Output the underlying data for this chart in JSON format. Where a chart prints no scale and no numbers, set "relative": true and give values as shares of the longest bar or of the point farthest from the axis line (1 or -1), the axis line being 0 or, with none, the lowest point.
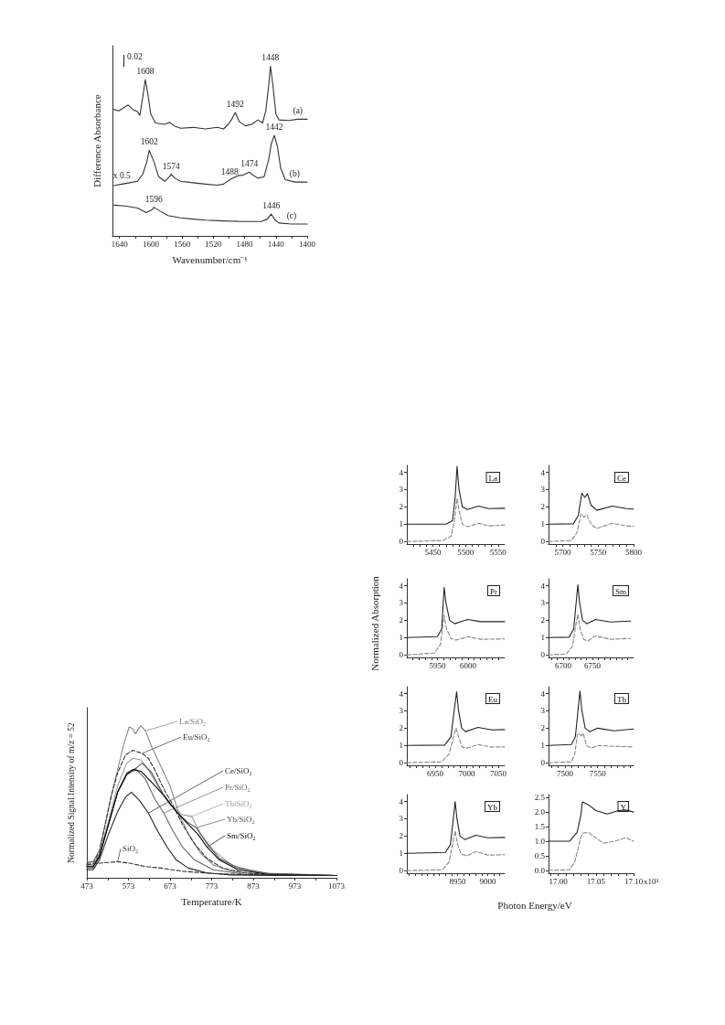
{
  "chart_data": [
    {
      "type": "line",
      "relative": true,
      "xlabel": "Wavenumber/cm⁻¹",
      "ylabel": "Difference Absorbance",
      "xlim": [
        1649,
        1400
      ],
      "xticks": [
        1640,
        {
          "value": 1620,
          "label": null
        },
        1600,
        {
          "value": 1580,
          "label": null
        },
        1560,
        {
          "value": 1540,
          "label": null
        },
        1520,
        {
          "value": 1500,
          "label": null
        },
        1480,
        {
          "value": 1460,
          "label": null
        },
        1440,
        {
          "value": 1420,
          "label": null
        },
        1400
      ],
      "series": [
        {
          "color": "#333333",
          "x": [
            1647,
            1641,
            1635,
            1629,
            1623,
            1617,
            1614,
            1610,
            1607,
            1604,
            1600,
            1594,
            1582,
            1576,
            1570,
            1562,
            1546,
            1530,
            1515,
            1507,
            1501,
            1497,
            1492,
            1487,
            1479,
            1471,
            1463,
            1457,
            1453,
            1449,
            1447,
            1444,
            1440,
            1436,
            1424,
            1412,
            1400
          ],
          "values": [
            0.745,
            0.736,
            0.754,
            0.771,
            0.745,
            0.732,
            0.71,
            0.824,
            0.921,
            0.842,
            0.718,
            0.665,
            0.657,
            0.669,
            0.648,
            0.634,
            0.639,
            0.63,
            0.639,
            0.63,
            0.657,
            0.683,
            0.727,
            0.674,
            0.648,
            0.657,
            0.683,
            0.665,
            0.736,
            0.894,
            1,
            0.894,
            0.718,
            0.683,
            0.68,
            0.687,
            0.687
          ]
        },
        {
          "color": "#333333",
          "x": [
            1647,
            1637,
            1627,
            1617,
            1610,
            1605,
            1602,
            1596,
            1590,
            1582,
            1576,
            1574,
            1569,
            1562,
            1546,
            1530,
            1515,
            1507,
            1499,
            1488,
            1483,
            1474,
            1469,
            1463,
            1455,
            1449,
            1446,
            1442,
            1438,
            1434,
            1428,
            1416,
            1400
          ],
          "values": [
            0.296,
            0.305,
            0.313,
            0.322,
            0.366,
            0.437,
            0.504,
            0.437,
            0.349,
            0.322,
            0.349,
            0.363,
            0.34,
            0.322,
            0.313,
            0.305,
            0.299,
            0.305,
            0.331,
            0.356,
            0.357,
            0.375,
            0.357,
            0.34,
            0.349,
            0.454,
            0.542,
            0.592,
            0.525,
            0.401,
            0.331,
            0.317,
            0.317
          ]
        },
        {
          "color": "#333333",
          "x": [
            1647,
            1633,
            1617,
            1606,
            1598,
            1596,
            1588,
            1578,
            1562,
            1546,
            1530,
            1507,
            1483,
            1459,
            1451,
            1446,
            1441,
            1436,
            1420,
            1400
          ],
          "values": [
            0.181,
            0.176,
            0.164,
            0.137,
            0.155,
            0.169,
            0.146,
            0.12,
            0.106,
            0.099,
            0.093,
            0.088,
            0.085,
            0.085,
            0.099,
            0.129,
            0.093,
            0.076,
            0.07,
            0.07
          ]
        }
      ],
      "annotations": [
        "0.02",
        {
          "text": "1608",
          "x": 1607,
          "y": 0.921
        },
        {
          "text": "1448",
          "x": 1447,
          "y": 1
        },
        {
          "text": "1492",
          "x": 1492,
          "y": 0.727
        },
        {
          "text": "(a)",
          "x": 1412,
          "y": 0.687
        },
        {
          "text": "x 0.5",
          "x": 1637,
          "y": 0.305
        },
        {
          "text": "1602",
          "x": 1602,
          "y": 0.504
        },
        {
          "text": "1574",
          "x": 1574,
          "y": 0.363
        },
        {
          "text": "1488",
          "x": 1499,
          "y": 0.331
        },
        {
          "text": "1474",
          "x": 1474,
          "y": 0.375
        },
        {
          "text": "1442",
          "x": 1442,
          "y": 0.592
        },
        {
          "text": "(b)",
          "x": 1416,
          "y": 0.317
        },
        {
          "text": "1596",
          "x": 1596,
          "y": 0.169
        },
        {
          "text": "1446",
          "x": 1446,
          "y": 0.129
        },
        {
          "text": "(c)",
          "x": 1420,
          "y": 0.07
        }
      ]
    },
    {
      "type": "line",
      "relative": true,
      "legend": "top right",
      "xlabel": "Temperature/K",
      "ylabel": "Normalized Signal Intensity of m/z = 52",
      "xlim": [
        473,
        1073
      ],
      "xticks": [
        473,
        {
          "value": 523,
          "label": null
        },
        573,
        {
          "value": 623,
          "label": null
        },
        673,
        {
          "value": 723,
          "label": null
        },
        773,
        {
          "value": 823,
          "label": null
        },
        873,
        {
          "value": 923,
          "label": null
        },
        973,
        {
          "value": 1023,
          "label": null
        },
        1073
      ],
      "series": [
        {
          "name": "La/SiO₂",
          "color": "#777777",
          "line_style": "dotted",
          "x": [
            473,
            488,
            503,
            517,
            532,
            547,
            562,
            575,
            584,
            590,
            596,
            603,
            614,
            629,
            651,
            673,
            695,
            717,
            747,
            777,
            821,
            888,
            999,
            1073
          ],
          "values": [
            0.106,
            0.106,
            0.181,
            0.351,
            0.543,
            0.713,
            0.883,
            0.994,
            0.979,
            0.947,
            0.979,
            1,
            0.968,
            0.862,
            0.734,
            0.606,
            0.415,
            0.287,
            0.16,
            0.085,
            0.043,
            0.021,
            0.015,
            0.015
          ]
        },
        {
          "name": "Eu/SiO₂",
          "color": "#333333",
          "line_style": "dashed",
          "x": [
            473,
            488,
            503,
            517,
            532,
            547,
            566,
            584,
            606,
            621,
            636,
            658,
            680,
            703,
            732,
            762,
            799,
            851,
            925,
            1073
          ],
          "values": [
            0.096,
            0.096,
            0.17,
            0.351,
            0.543,
            0.691,
            0.809,
            0.84,
            0.819,
            0.787,
            0.713,
            0.585,
            0.479,
            0.351,
            0.223,
            0.128,
            0.064,
            0.032,
            0.017,
            0.015
          ]
        },
        {
          "name": "Ce/SiO₂",
          "color": "#222222",
          "x": [
            473,
            488,
            503,
            525,
            547,
            566,
            580,
            599,
            621,
            643,
            666,
            688,
            717,
            762,
            821,
            925,
            1073
          ],
          "values": [
            0.053,
            0.053,
            0.117,
            0.287,
            0.436,
            0.532,
            0.564,
            0.511,
            0.426,
            0.309,
            0.202,
            0.117,
            0.064,
            0.032,
            0.019,
            0.015,
            0.015
          ]
        },
        {
          "name": "Pr/SiO₂",
          "color": "#666666",
          "x": [
            473,
            488,
            503,
            525,
            547,
            569,
            592,
            614,
            636,
            658,
            680,
            703,
            732,
            777,
            851,
            1073
          ],
          "values": [
            0.064,
            0.064,
            0.138,
            0.351,
            0.564,
            0.681,
            0.713,
            0.649,
            0.521,
            0.426,
            0.309,
            0.202,
            0.117,
            0.053,
            0.023,
            0.015
          ]
        },
        {
          "name": "Tb/SiO₂",
          "color": "#999999",
          "x": [
            473,
            488,
            503,
            525,
            547,
            569,
            584,
            603,
            621,
            643,
            673,
            703,
            725,
            747,
            777,
            821,
            888,
            1073
          ],
          "values": [
            0.085,
            0.085,
            0.16,
            0.372,
            0.606,
            0.755,
            0.787,
            0.777,
            0.713,
            0.606,
            0.479,
            0.415,
            0.404,
            0.287,
            0.181,
            0.085,
            0.032,
            0.015
          ]
        },
        {
          "name": "Yb/SiO₂",
          "color": "#555555",
          "x": [
            473,
            488,
            503,
            525,
            547,
            569,
            592,
            606,
            629,
            658,
            688,
            717,
            736,
            762,
            792,
            836,
            910,
            1073
          ],
          "values": [
            0.074,
            0.074,
            0.149,
            0.351,
            0.564,
            0.691,
            0.723,
            0.755,
            0.691,
            0.543,
            0.436,
            0.362,
            0.33,
            0.223,
            0.128,
            0.064,
            0.028,
            0.015
          ]
        },
        {
          "name": "Sm/SiO₂",
          "color": "#000000",
          "x": [
            473,
            488,
            503,
            525,
            547,
            569,
            584,
            603,
            629,
            658,
            688,
            717,
            740,
            762,
            792,
            836,
            910,
            1073
          ],
          "values": [
            0.074,
            0.074,
            0.138,
            0.351,
            0.564,
            0.681,
            0.713,
            0.702,
            0.628,
            0.543,
            0.436,
            0.351,
            0.287,
            0.202,
            0.117,
            0.053,
            0.021,
            0.015
          ]
        },
        {
          "name": "SiO₂",
          "color": "#333333",
          "line_style": "dashed",
          "x": [
            473,
            503,
            547,
            576,
            614,
            651,
            703,
            777,
            851,
            1073
          ],
          "values": [
            0.085,
            0.096,
            0.106,
            0.096,
            0.074,
            0.064,
            0.043,
            0.028,
            0.021,
            0.015
          ]
        }
      ]
    },
    {
      "type": "line",
      "xlim": [
        5410,
        5560
      ],
      "ylim": [
        -0.15,
        4.4
      ],
      "yticks": [
        0,
        1,
        2,
        3,
        4
      ],
      "xticks": [
        {
          "value": 5420,
          "label": null
        },
        {
          "value": 5430,
          "label": null
        },
        {
          "value": 5440,
          "label": null
        },
        5450,
        {
          "value": 5460,
          "label": null
        },
        {
          "value": 5470,
          "label": null
        },
        {
          "value": 5480,
          "label": null
        },
        {
          "value": 5490,
          "label": null
        },
        5500,
        {
          "value": 5510,
          "label": null
        },
        {
          "value": 5520,
          "label": null
        },
        {
          "value": 5530,
          "label": null
        },
        {
          "value": 5540,
          "label": null
        },
        5550
      ],
      "series": [
        {
          "color": "#222222",
          "x": [
            5410,
            5470,
            5480,
            5484,
            5487,
            5490,
            5495,
            5503,
            5520,
            5535,
            5560
          ],
          "values": [
            1,
            1,
            1.2,
            2.5,
            4.35,
            3,
            2,
            1.85,
            2.05,
            1.9,
            1.92
          ]
        },
        {
          "color": "#888888",
          "line_style": "dashed",
          "x": [
            5410,
            5465,
            5478,
            5483,
            5487,
            5490,
            5495,
            5503,
            5520,
            5535,
            5560
          ],
          "values": [
            0,
            0.05,
            0.3,
            1.2,
            2.5,
            1.8,
            1,
            0.85,
            1.05,
            0.9,
            0.95
          ]
        }
      ],
      "annotations": [
        "La"
      ]
    },
    {
      "type": "line",
      "xlim": [
        5680,
        5800
      ],
      "ylim": [
        -0.15,
        4.4
      ],
      "yticks": [
        0,
        1,
        2,
        3,
        4
      ],
      "xticks": [
        {
          "value": 5690,
          "label": null
        },
        5700,
        {
          "value": 5710,
          "label": null
        },
        {
          "value": 5720,
          "label": null
        },
        {
          "value": 5730,
          "label": null
        },
        {
          "value": 5740,
          "label": null
        },
        5750,
        {
          "value": 5760,
          "label": null
        },
        {
          "value": 5770,
          "label": null
        },
        {
          "value": 5780,
          "label": null
        },
        {
          "value": 5790,
          "label": null
        },
        5800
      ],
      "series": [
        {
          "color": "#222222",
          "x": [
            5680,
            5715,
            5722,
            5727,
            5731,
            5735,
            5740,
            5748,
            5770,
            5790,
            5800
          ],
          "values": [
            1,
            1.02,
            1.5,
            2.8,
            2.55,
            2.75,
            2.1,
            1.8,
            2.05,
            1.9,
            1.87
          ]
        },
        {
          "color": "#888888",
          "line_style": "dashed",
          "x": [
            5680,
            5712,
            5720,
            5726,
            5730,
            5734,
            5740,
            5748,
            5770,
            5790,
            5800
          ],
          "values": [
            0,
            0.05,
            0.5,
            1.6,
            1.4,
            1.55,
            1,
            0.75,
            1.05,
            0.9,
            0.88
          ]
        }
      ],
      "annotations": [
        "Ce"
      ]
    },
    {
      "type": "line",
      "ylabel": "Normalized Absorption",
      "xlim": [
        5900,
        6060
      ],
      "ylim": [
        -0.15,
        4.4
      ],
      "yticks": [
        0,
        1,
        2,
        3,
        4
      ],
      "xticks": [
        {
          "value": 5910,
          "label": null
        },
        {
          "value": 5920,
          "label": null
        },
        {
          "value": 5930,
          "label": null
        },
        {
          "value": 5940,
          "label": null
        },
        5950,
        {
          "value": 5960,
          "label": null
        },
        {
          "value": 5970,
          "label": null
        },
        {
          "value": 5980,
          "label": null
        },
        {
          "value": 5990,
          "label": null
        },
        6000,
        {
          "value": 6010,
          "label": null
        },
        {
          "value": 6020,
          "label": null
        },
        {
          "value": 6030,
          "label": null
        },
        {
          "value": 6040,
          "label": null
        },
        {
          "value": 6050,
          "label": null
        }
      ],
      "series": [
        {
          "color": "#222222",
          "x": [
            5900,
            5950,
            5957,
            5961,
            5964,
            5970,
            5978,
            6000,
            6020,
            6060
          ],
          "values": [
            1,
            1.05,
            1.5,
            3.9,
            3,
            2,
            1.8,
            2.05,
            1.92,
            1.92
          ]
        },
        {
          "color": "#888888",
          "line_style": "dashed",
          "x": [
            5900,
            5945,
            5955,
            5961,
            5965,
            5972,
            5980,
            6000,
            6020,
            6060
          ],
          "values": [
            0,
            0.1,
            0.6,
            2.3,
            1.5,
            0.95,
            0.85,
            1.05,
            0.9,
            0.92
          ]
        }
      ],
      "annotations": [
        "Pr"
      ]
    },
    {
      "type": "line",
      "xlim": [
        6675,
        6820
      ],
      "ylim": [
        -0.15,
        4.4
      ],
      "yticks": [
        0,
        1,
        2,
        3,
        4
      ],
      "xticks": [
        {
          "value": 6680,
          "label": null
        },
        {
          "value": 6690,
          "label": null
        },
        6700,
        {
          "value": 6710,
          "label": null
        },
        {
          "value": 6720,
          "label": null
        },
        {
          "value": 6730,
          "label": null
        },
        {
          "value": 6740,
          "label": null
        },
        6750,
        {
          "value": 6760,
          "label": null
        },
        {
          "value": 6770,
          "label": null
        },
        {
          "value": 6780,
          "label": null
        },
        {
          "value": 6790,
          "label": null
        },
        {
          "value": 6800,
          "label": null
        },
        {
          "value": 6810,
          "label": null
        }
      ],
      "series": [
        {
          "color": "#222222",
          "x": [
            6675,
            6710,
            6718,
            6722,
            6725,
            6728,
            6733,
            6740,
            6755,
            6780,
            6815
          ],
          "values": [
            1,
            1.02,
            1.5,
            3,
            4.05,
            3,
            2,
            1.8,
            2.05,
            1.9,
            1.95
          ]
        },
        {
          "color": "#888888",
          "line_style": "dashed",
          "x": [
            6675,
            6705,
            6716,
            6721,
            6725,
            6729,
            6735,
            6742,
            6755,
            6780,
            6815
          ],
          "values": [
            0,
            0.05,
            0.5,
            1.6,
            2.35,
            1.5,
            0.9,
            0.8,
            1.1,
            0.9,
            0.95
          ]
        }
      ],
      "annotations": [
        "Sm"
      ]
    },
    {
      "type": "line",
      "xlim": [
        6905,
        7060
      ],
      "ylim": [
        -0.15,
        4.4
      ],
      "yticks": [
        0,
        1,
        2,
        3,
        4
      ],
      "xticks": [
        {
          "value": 6910,
          "label": null
        },
        {
          "value": 6920,
          "label": null
        },
        {
          "value": 6930,
          "label": null
        },
        {
          "value": 6940,
          "label": null
        },
        6950,
        {
          "value": 6960,
          "label": null
        },
        {
          "value": 6970,
          "label": null
        },
        {
          "value": 6980,
          "label": null
        },
        {
          "value": 6990,
          "label": null
        },
        7000,
        {
          "value": 7010,
          "label": null
        },
        {
          "value": 7020,
          "label": null
        },
        {
          "value": 7030,
          "label": null
        },
        {
          "value": 7040,
          "label": null
        },
        7050
      ],
      "series": [
        {
          "color": "#222222",
          "x": [
            6905,
            6965,
            6975,
            6980,
            6984,
            6987,
            6992,
            6998,
            7018,
            7040,
            7060
          ],
          "values": [
            1,
            1.02,
            1.5,
            3,
            4.1,
            3,
            2,
            1.8,
            2.05,
            1.9,
            1.92
          ]
        },
        {
          "color": "#888888",
          "line_style": "dashed",
          "x": [
            6905,
            6960,
            6972,
            6979,
            6983,
            6987,
            6993,
            7000,
            7018,
            7040,
            7060
          ],
          "values": [
            0,
            0.05,
            0.5,
            1.5,
            2,
            1.5,
            0.9,
            0.85,
            1.05,
            0.9,
            0.92
          ]
        }
      ],
      "annotations": [
        "Eu"
      ]
    },
    {
      "type": "line",
      "xlim": [
        7475,
        7605
      ],
      "ylim": [
        -0.15,
        4.4
      ],
      "yticks": [
        0,
        1,
        2,
        3,
        4
      ],
      "xticks": [
        {
          "value": 7480,
          "label": null
        },
        {
          "value": 7490,
          "label": null
        },
        7500,
        {
          "value": 7510,
          "label": null
        },
        {
          "value": 7520,
          "label": null
        },
        {
          "value": 7530,
          "label": null
        },
        {
          "value": 7540,
          "label": null
        },
        7550,
        {
          "value": 7560,
          "label": null
        },
        {
          "value": 7570,
          "label": null
        },
        {
          "value": 7580,
          "label": null
        },
        {
          "value": 7590,
          "label": null
        },
        {
          "value": 7600,
          "label": null
        }
      ],
      "series": [
        {
          "color": "#222222",
          "x": [
            7475,
            7510,
            7516,
            7520,
            7523,
            7526,
            7531,
            7538,
            7550,
            7575,
            7605
          ],
          "values": [
            1,
            1.05,
            1.5,
            3,
            4.15,
            3,
            2,
            1.8,
            2,
            1.85,
            1.95
          ]
        },
        {
          "color": "#888888",
          "line_style": "dashed",
          "x": [
            7475,
            7510,
            7515,
            7519,
            7522,
            7525,
            7528,
            7533,
            7540,
            7552,
            7575,
            7605
          ],
          "values": [
            0,
            0.05,
            0.5,
            1.6,
            1.7,
            1.55,
            1.7,
            1,
            0.85,
            1,
            0.95,
            0.92
          ]
        }
      ],
      "annotations": [
        "Tb"
      ]
    },
    {
      "type": "line",
      "xlabel": "Photon Energy/eV",
      "xlim": [
        8866,
        9028
      ],
      "ylim": [
        -0.15,
        4.4
      ],
      "yticks": [
        0,
        1,
        2,
        3,
        4
      ],
      "xticks": [
        {
          "value": 8870,
          "label": null
        },
        {
          "value": 8880,
          "label": null
        },
        {
          "value": 8890,
          "label": null
        },
        {
          "value": 8900,
          "label": null
        },
        {
          "value": 8910,
          "label": null
        },
        {
          "value": 8920,
          "label": null
        },
        {
          "value": 8930,
          "label": null
        },
        {
          "value": 8940,
          "label": null
        },
        8950,
        {
          "value": 8960,
          "label": null
        },
        {
          "value": 8970,
          "label": null
        },
        {
          "value": 8980,
          "label": null
        },
        {
          "value": 8990,
          "label": null
        },
        9000,
        {
          "value": 9010,
          "label": null
        },
        {
          "value": 9020,
          "label": null
        }
      ],
      "series": [
        {
          "color": "#222222",
          "x": [
            8866,
            8930,
            8938,
            8943,
            8946,
            8949,
            8954,
            8962,
            8980,
            9000,
            9028
          ],
          "values": [
            1,
            1.05,
            1.5,
            3,
            4,
            3,
            2,
            1.8,
            2.05,
            1.9,
            1.92
          ]
        },
        {
          "color": "#888888",
          "line_style": "dashed",
          "x": [
            8866,
            8925,
            8936,
            8942,
            8946,
            8950,
            8956,
            8965,
            8980,
            9000,
            9028
          ],
          "values": [
            0,
            0.05,
            0.5,
            1.6,
            2.3,
            1.5,
            0.95,
            0.85,
            1.1,
            0.9,
            0.92
          ]
        }
      ],
      "annotations": [
        "Yb"
      ]
    },
    {
      "type": "line",
      "xlim": [
        16.987,
        17.1
      ],
      "ylim": [
        -0.1,
        2.6
      ],
      "yticks": [
        {
          "value": 0,
          "label": "0.0"
        },
        {
          "value": 0.5,
          "label": "0.5"
        },
        {
          "value": 1,
          "label": "1.0"
        },
        {
          "value": 1.5,
          "label": "1.5"
        },
        {
          "value": 2,
          "label": "2.0"
        },
        {
          "value": 2.5,
          "label": "2.5"
        }
      ],
      "xticks": [
        {
          "value": 16.99,
          "label": null
        },
        {
          "value": 17,
          "label": "17.00"
        },
        {
          "value": 17.01,
          "label": null
        },
        {
          "value": 17.02,
          "label": null
        },
        {
          "value": 17.03,
          "label": null
        },
        {
          "value": 17.04,
          "label": null
        },
        {
          "value": 17.05,
          "label": "17.05"
        },
        {
          "value": 17.06,
          "label": null
        },
        {
          "value": 17.07,
          "label": null
        },
        {
          "value": 17.08,
          "label": null
        },
        {
          "value": 17.09,
          "label": null
        },
        {
          "value": 17.1,
          "label": "17.10"
        }
      ],
      "series": [
        {
          "color": "#222222",
          "x": [
            16.987,
            17.015,
            17.025,
            17.03,
            17.032,
            17.04,
            17.05,
            17.065,
            17.08,
            17.09,
            17.1
          ],
          "values": [
            1,
            1,
            1.3,
            1.9,
            2.35,
            2.25,
            2.05,
            1.93,
            2.05,
            2.07,
            2
          ]
        },
        {
          "color": "#888888",
          "line_style": "dashed",
          "x": [
            16.987,
            17.015,
            17.022,
            17.03,
            17.033,
            17.04,
            17.045,
            17.06,
            17.075,
            17.09,
            17.1
          ],
          "values": [
            0,
            0.02,
            0.3,
            1.15,
            1.28,
            1.3,
            1.2,
            0.93,
            1,
            1.12,
            1
          ]
        }
      ],
      "annotations": [
        "Y",
        "x10³"
      ]
    }
  ]
}
